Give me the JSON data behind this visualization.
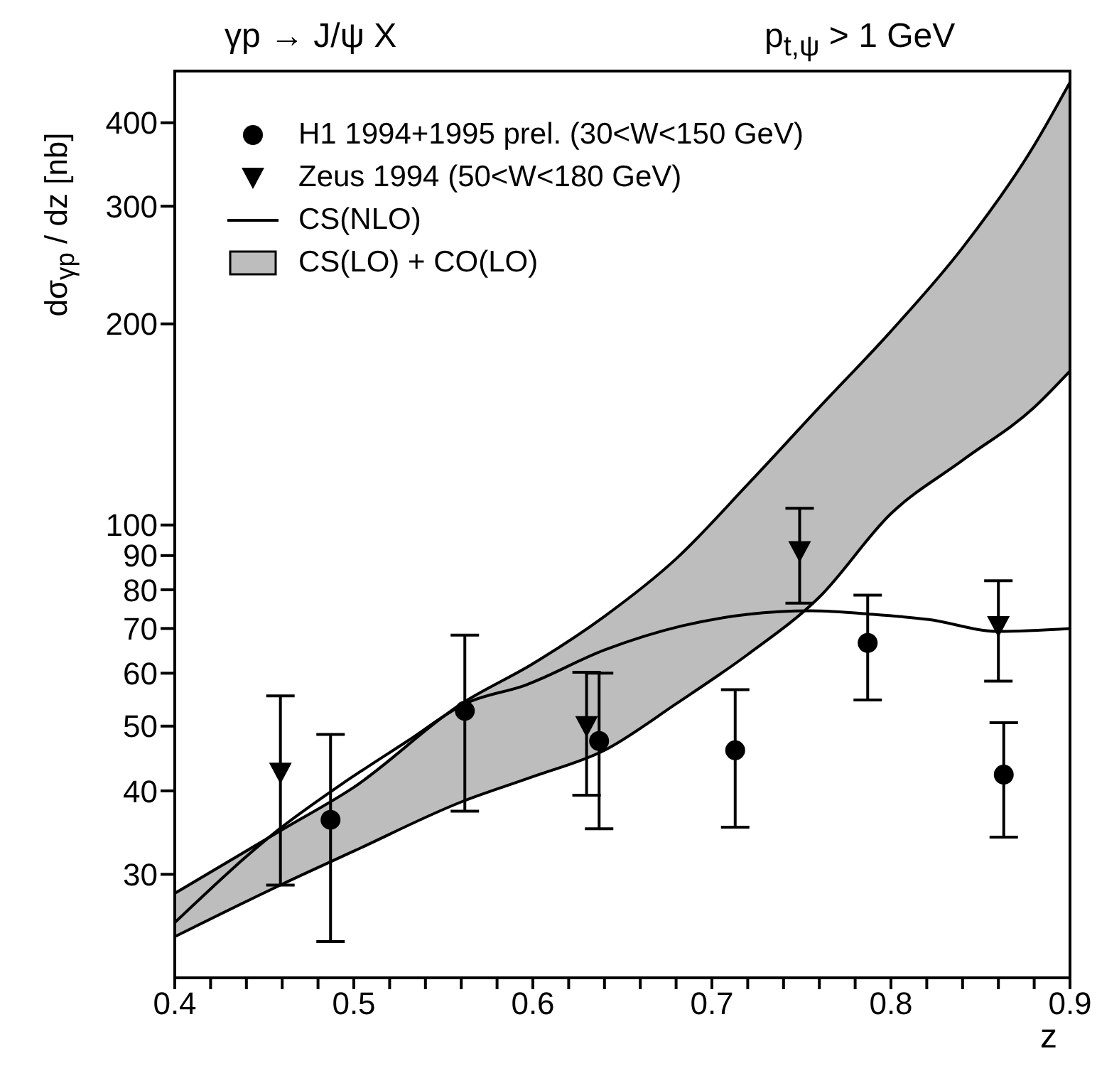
{
  "chart_data": {
    "type": "scatter",
    "title": "γp → J/ψ X",
    "subtitle": "p$_{t,ψ}$ > 1 GeV",
    "xlabel": "z",
    "ylabel": "dσ$_{γp}$ / dz [nb]",
    "xlim": [
      0.4,
      0.9
    ],
    "ylim": [
      21,
      478
    ],
    "log": "y",
    "legend": "top left",
    "xticks": [
      0.4,
      {
        "value": 0.42,
        "label": null
      },
      {
        "value": 0.44,
        "label": null
      },
      {
        "value": 0.46,
        "label": null
      },
      {
        "value": 0.48,
        "label": null
      },
      0.5,
      {
        "value": 0.52,
        "label": null
      },
      {
        "value": 0.54,
        "label": null
      },
      {
        "value": 0.56,
        "label": null
      },
      {
        "value": 0.58,
        "label": null
      },
      0.6,
      {
        "value": 0.62,
        "label": null
      },
      {
        "value": 0.64,
        "label": null
      },
      {
        "value": 0.66,
        "label": null
      },
      {
        "value": 0.68,
        "label": null
      },
      0.7,
      {
        "value": 0.72,
        "label": null
      },
      {
        "value": 0.74,
        "label": null
      },
      {
        "value": 0.76,
        "label": null
      },
      {
        "value": 0.78,
        "label": null
      },
      0.8,
      {
        "value": 0.82,
        "label": null
      },
      {
        "value": 0.84,
        "label": null
      },
      {
        "value": 0.86,
        "label": null
      },
      {
        "value": 0.88,
        "label": null
      },
      0.9
    ],
    "yticks": [
      30,
      40,
      50,
      60,
      70,
      80,
      90,
      100,
      200,
      300,
      400
    ],
    "series": [
      {
        "name": "H1 1994+1995 prel. (30<W<150 GeV)",
        "marker": "circle",
        "color": "#000000",
        "x": [
          0.487,
          0.562,
          0.637,
          0.713,
          0.787,
          0.863
        ],
        "values": [
          36.2,
          52.7,
          47.5,
          46.0,
          66.6,
          42.3
        ],
        "errors": [
          [
            23.8,
            48.6
          ],
          [
            37.3,
            68.4
          ],
          [
            35.1,
            60.0
          ],
          [
            35.3,
            56.7
          ],
          [
            54.7,
            78.5
          ],
          [
            34.1,
            50.6
          ]
        ]
      },
      {
        "name": "Zeus 1994 (50<W<180 GeV)",
        "marker": "triangle",
        "color": "#000000",
        "x": [
          0.459,
          0.63,
          0.749,
          0.86
        ],
        "values": [
          42.6,
          50.0,
          91.4,
          70.6
        ],
        "errors": [
          [
            28.9,
            55.5
          ],
          [
            39.4,
            60.2
          ],
          [
            76.4,
            105.9
          ],
          [
            58.4,
            82.5
          ]
        ]
      },
      {
        "name": "CS(NLO)",
        "type": "line",
        "color": "#000000",
        "x": [
          0.4,
          0.458,
          0.493,
          0.53,
          0.562,
          0.596,
          0.64,
          0.683,
          0.72,
          0.755,
          0.79,
          0.821,
          0.86,
          0.9
        ],
        "values": [
          25.4,
          35,
          40.9,
          47.5,
          54,
          57.6,
          65,
          70.6,
          73.5,
          74.4,
          73.5,
          72.2,
          69.3,
          70
        ]
      },
      {
        "name": "CS(LO) + CO(LO)",
        "type": "area",
        "color": "#bdbdbd",
        "x": [
          0.4,
          0.46,
          0.5,
          0.56,
          0.6,
          0.64,
          0.68,
          0.72,
          0.76,
          0.8,
          0.84,
          0.88,
          0.9
        ],
        "values": [
          null,
          null,
          null,
          null,
          null,
          null,
          null,
          null,
          null,
          null,
          null,
          null,
          null
        ],
        "lower": [
          24.2,
          29,
          32.5,
          38.5,
          42,
          46,
          54,
          64,
          78,
          104,
          125,
          150,
          170
        ],
        "upper": [
          28.1,
          35,
          40.5,
          54,
          62,
          73,
          89,
          115,
          150,
          195,
          260,
          370,
          460
        ]
      },
      {
        "type": "line",
        "color": "#000000",
        "x": [
          0.4,
          0.46,
          0.5,
          0.56,
          0.6,
          0.64,
          0.68,
          0.72,
          0.76,
          0.8,
          0.84,
          0.88,
          0.9
        ],
        "values": [
          24.2,
          29,
          32.5,
          38.5,
          42,
          46,
          54,
          64,
          78,
          104,
          125,
          150,
          170
        ]
      },
      {
        "type": "line",
        "color": "#000000",
        "x": [
          0.4,
          0.46,
          0.5,
          0.56,
          0.6,
          0.64,
          0.68,
          0.72,
          0.76,
          0.8,
          0.84,
          0.88,
          0.9
        ],
        "values": [
          28.1,
          35,
          40.5,
          54,
          62,
          73,
          89,
          115,
          150,
          195,
          260,
          370,
          460
        ]
      }
    ]
  }
}
